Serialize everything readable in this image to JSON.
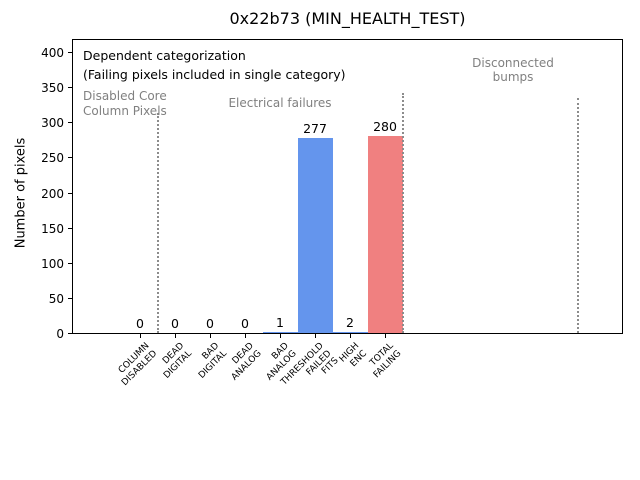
{
  "chart_data": {
    "type": "bar",
    "title": "0x22b73 (MIN_HEALTH_TEST)",
    "ylabel": "Number of pixels",
    "ylim": [
      0,
      420
    ],
    "yticks": [
      0,
      50,
      100,
      150,
      200,
      250,
      300,
      350,
      400
    ],
    "categories": [
      "COLUMN\nDISABLED",
      "DEAD\nDIGITAL",
      "BAD\nDIGITAL",
      "DEAD\nANALOG",
      "BAD\nANALOG",
      "THRESHOLD\nFAILED\nFITS",
      "HIGH\nENC",
      "TOTAL\nFAILING"
    ],
    "values": [
      0,
      0,
      0,
      0,
      1,
      277,
      2,
      280
    ],
    "value_labels": [
      "0",
      "0",
      "0",
      "0",
      "1",
      "277",
      "2",
      "280"
    ],
    "bar_colors": [
      "#6495ED",
      "#6495ED",
      "#6495ED",
      "#6495ED",
      "#6495ED",
      "#6495ED",
      "#6495ED",
      "#F08080"
    ],
    "note": {
      "line1": "Dependent categorization",
      "line2": "(Failing pixels included in single category)"
    },
    "regions": [
      {
        "label": "Disabled Core\nColumn Pixels"
      },
      {
        "label": "Electrical failures"
      },
      {
        "label": "Disconnected\nbumps"
      }
    ],
    "separators_category_index": [
      0.5,
      7.5,
      12.5
    ],
    "grid": false,
    "legend": false,
    "colors": {
      "bar_blue": "#6495ED",
      "bar_coral": "#F08080",
      "muted_text": "#808080",
      "separator_line": "#8c8c8c"
    }
  }
}
